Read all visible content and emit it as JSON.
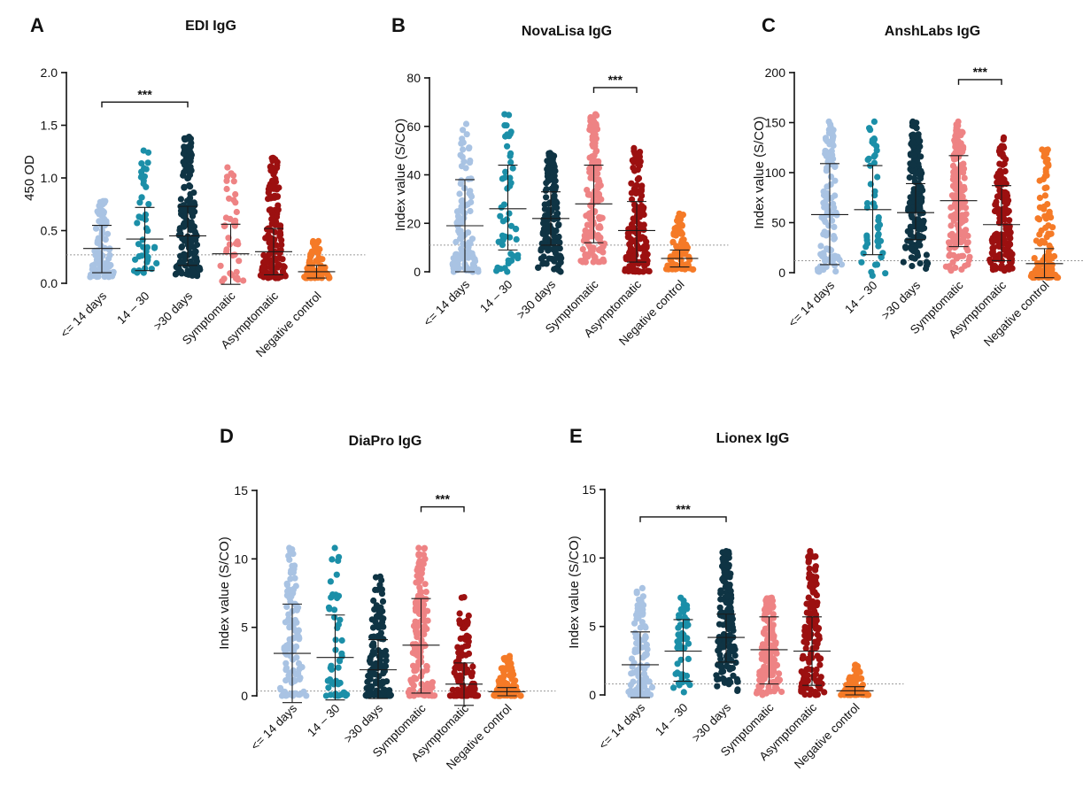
{
  "chart_data": [
    {
      "type": "scatter",
      "letter": "A",
      "title": "EDI IgG",
      "ylabel": "450 OD",
      "ylim": [
        0,
        2.0
      ],
      "yticks": [
        0,
        0.5,
        1.0,
        1.5,
        2.0
      ],
      "tick_labels": [
        "0.0",
        "0.5",
        "1.0",
        "1.5",
        "2.0"
      ],
      "cutoff": 0.27,
      "categories": [
        "<= 14 days",
        "14 – 30",
        ">30 days",
        "Symptomatic",
        "Asymptomatic",
        "Negative control"
      ],
      "series": [
        {
          "name": "<= 14 days",
          "color": "#a9c3e3",
          "n": 90,
          "min": 0.06,
          "max": 0.78,
          "mean": 0.33,
          "sd_low": 0.1,
          "sd_high": 0.55,
          "skew": 1.6
        },
        {
          "name": "14 – 30",
          "color": "#1b8fa8",
          "n": 45,
          "min": 0.1,
          "max": 1.26,
          "mean": 0.42,
          "sd_low": 0.12,
          "sd_high": 0.72,
          "skew": 1.3
        },
        {
          "name": ">30 days",
          "color": "#0f3444",
          "n": 160,
          "min": 0.07,
          "max": 1.39,
          "mean": 0.45,
          "sd_low": 0.17,
          "sd_high": 0.73,
          "skew": 1.5
        },
        {
          "name": "Symptomatic",
          "color": "#ee8384",
          "n": 40,
          "min": 0.02,
          "max": 1.1,
          "mean": 0.28,
          "sd_low": -0.01,
          "sd_high": 0.56,
          "skew": 1.6
        },
        {
          "name": "Asymptomatic",
          "color": "#9c1010",
          "n": 140,
          "min": 0.05,
          "max": 1.19,
          "mean": 0.3,
          "sd_low": 0.08,
          "sd_high": 0.52,
          "skew": 1.5
        },
        {
          "name": "Negative control",
          "color": "#f57a27",
          "n": 80,
          "min": 0.05,
          "max": 0.4,
          "mean": 0.11,
          "sd_low": 0.05,
          "sd_high": 0.17,
          "skew": 2.2
        }
      ],
      "significance": {
        "from": 0,
        "to": 2,
        "y": 1.72,
        "label": "***"
      }
    },
    {
      "type": "scatter",
      "letter": "B",
      "title": "NovaLisa IgG",
      "ylabel": "Index value (S/CO)",
      "ylim": [
        0,
        80
      ],
      "yticks": [
        0,
        20,
        40,
        60,
        80
      ],
      "tick_labels": [
        "0",
        "20",
        "40",
        "60",
        "80"
      ],
      "cutoff": 11,
      "categories": [
        "<= 14 days",
        "14 – 30",
        ">30 days",
        "Symptomatic",
        "Asymptomatic",
        "Negative control"
      ],
      "series": [
        {
          "name": "<= 14 days",
          "color": "#a9c3e3",
          "n": 110,
          "min": 0,
          "max": 61,
          "mean": 19,
          "sd_low": 0,
          "sd_high": 38,
          "skew": 1.7
        },
        {
          "name": "14 – 30",
          "color": "#1b8fa8",
          "n": 50,
          "min": 0,
          "max": 65,
          "mean": 26,
          "sd_low": 9,
          "sd_high": 44,
          "skew": 1.1
        },
        {
          "name": ">30 days",
          "color": "#0f3444",
          "n": 160,
          "min": 0,
          "max": 49,
          "mean": 22,
          "sd_low": 11,
          "sd_high": 33,
          "skew": 1.0
        },
        {
          "name": "Symptomatic",
          "color": "#ee8384",
          "n": 160,
          "min": 4,
          "max": 65,
          "mean": 28,
          "sd_low": 12,
          "sd_high": 44,
          "skew": 1.2
        },
        {
          "name": "Asymptomatic",
          "color": "#9c1010",
          "n": 150,
          "min": 0,
          "max": 51,
          "mean": 17,
          "sd_low": 4,
          "sd_high": 29,
          "skew": 1.5
        },
        {
          "name": "Negative control",
          "color": "#f57a27",
          "n": 90,
          "min": 1,
          "max": 24,
          "mean": 5.5,
          "sd_low": 2,
          "sd_high": 9,
          "skew": 2.0
        }
      ],
      "significance": {
        "from": 3,
        "to": 4,
        "y": 76,
        "label": "***"
      }
    },
    {
      "type": "scatter",
      "letter": "C",
      "title": "AnshLabs IgG",
      "ylabel": "Index value (S/CO)",
      "ylim": [
        0,
        200
      ],
      "yticks": [
        0,
        50,
        100,
        150,
        200
      ],
      "tick_labels": [
        "0",
        "50",
        "100",
        "150",
        "200"
      ],
      "cutoff": 12,
      "categories": [
        "<= 14 days",
        "14 – 30",
        ">30 days",
        "Symptomatic",
        "Asymptomatic",
        "Negative control"
      ],
      "series": [
        {
          "name": "<= 14 days",
          "color": "#a9c3e3",
          "n": 110,
          "min": 1,
          "max": 151,
          "mean": 58,
          "sd_low": 8,
          "sd_high": 109,
          "skew": 1.4
        },
        {
          "name": "14 – 30",
          "color": "#1b8fa8",
          "n": 50,
          "min": -3,
          "max": 151,
          "mean": 63,
          "sd_low": 18,
          "sd_high": 107,
          "skew": 1.0
        },
        {
          "name": ">30 days",
          "color": "#0f3444",
          "n": 160,
          "min": 4,
          "max": 151,
          "mean": 60,
          "sd_low": 33,
          "sd_high": 89,
          "skew": 1.0
        },
        {
          "name": "Symptomatic",
          "color": "#ee8384",
          "n": 170,
          "min": 2,
          "max": 151,
          "mean": 72,
          "sd_low": 26,
          "sd_high": 117,
          "skew": 1.0
        },
        {
          "name": "Asymptomatic",
          "color": "#9c1010",
          "n": 150,
          "min": 2,
          "max": 135,
          "mean": 48,
          "sd_low": 12,
          "sd_high": 87,
          "skew": 1.3
        },
        {
          "name": "Negative control",
          "color": "#f57a27",
          "n": 110,
          "min": -5,
          "max": 123,
          "mean": 9,
          "sd_low": -5,
          "sd_high": 24,
          "skew": 2.6
        }
      ],
      "significance": {
        "from": 3,
        "to": 4,
        "y": 193,
        "label": "***"
      }
    },
    {
      "type": "scatter",
      "letter": "D",
      "title": "DiaPro IgG",
      "ylabel": "Index value (S/CO)",
      "ylim": [
        0,
        15
      ],
      "yticks": [
        0,
        5,
        10,
        15
      ],
      "tick_labels": [
        "0",
        "5",
        "10",
        "15"
      ],
      "cutoff": 0.35,
      "categories": [
        "<= 14 days",
        "14 – 30",
        ">30 days",
        "Symptomatic",
        "Asymptomatic",
        "Negative control"
      ],
      "series": [
        {
          "name": "<= 14 days",
          "color": "#a9c3e3",
          "n": 110,
          "min": 0,
          "max": 10.8,
          "mean": 3.1,
          "sd_low": -0.5,
          "sd_high": 6.7,
          "skew": 1.5
        },
        {
          "name": "14 – 30",
          "color": "#1b8fa8",
          "n": 50,
          "min": 0,
          "max": 10.8,
          "mean": 2.8,
          "sd_low": -0.3,
          "sd_high": 5.9,
          "skew": 1.7
        },
        {
          "name": ">30 days",
          "color": "#0f3444",
          "n": 140,
          "min": 0,
          "max": 8.7,
          "mean": 1.9,
          "sd_low": -0.2,
          "sd_high": 4.1,
          "skew": 2.1
        },
        {
          "name": "Symptomatic",
          "color": "#ee8384",
          "n": 150,
          "min": 0,
          "max": 10.8,
          "mean": 3.7,
          "sd_low": 0.2,
          "sd_high": 7.1,
          "skew": 1.5
        },
        {
          "name": "Asymptomatic",
          "color": "#9c1010",
          "n": 110,
          "min": 0,
          "max": 7.2,
          "mean": 0.85,
          "sd_low": -0.7,
          "sd_high": 2.4,
          "skew": 3.0
        },
        {
          "name": "Negative control",
          "color": "#f57a27",
          "n": 90,
          "min": 0,
          "max": 2.9,
          "mean": 0.3,
          "sd_low": 0,
          "sd_high": 0.6,
          "skew": 2.8
        }
      ],
      "significance": {
        "from": 3,
        "to": 4,
        "y": 13.8,
        "label": "***"
      }
    },
    {
      "type": "scatter",
      "letter": "E",
      "title": "Lionex IgG",
      "ylabel": "Index value (S/CO)",
      "ylim": [
        0,
        15
      ],
      "yticks": [
        0,
        5,
        10,
        15
      ],
      "tick_labels": [
        "0",
        "5",
        "10",
        "15"
      ],
      "cutoff": 0.8,
      "categories": [
        "<= 14 days",
        "14 – 30",
        ">30 days",
        "Symptomatic",
        "Asymptomatic",
        "Negative control"
      ],
      "series": [
        {
          "name": "<= 14 days",
          "color": "#a9c3e3",
          "n": 100,
          "min": 0,
          "max": 7.8,
          "mean": 2.2,
          "sd_low": -0.2,
          "sd_high": 4.6,
          "skew": 1.7
        },
        {
          "name": "14 – 30",
          "color": "#1b8fa8",
          "n": 55,
          "min": 0.2,
          "max": 7.1,
          "mean": 3.2,
          "sd_low": 1.0,
          "sd_high": 5.5,
          "skew": 1.1
        },
        {
          "name": ">30 days",
          "color": "#0f3444",
          "n": 170,
          "min": 0.3,
          "max": 10.5,
          "mean": 4.2,
          "sd_low": 2.4,
          "sd_high": 5.9,
          "skew": 1.0
        },
        {
          "name": "Symptomatic",
          "color": "#ee8384",
          "n": 150,
          "min": 0,
          "max": 7.1,
          "mean": 3.3,
          "sd_low": 0.8,
          "sd_high": 5.7,
          "skew": 1.1
        },
        {
          "name": "Asymptomatic",
          "color": "#9c1010",
          "n": 140,
          "min": 0,
          "max": 10.5,
          "mean": 3.2,
          "sd_low": 0.7,
          "sd_high": 5.7,
          "skew": 1.2
        },
        {
          "name": "Negative control",
          "color": "#f57a27",
          "n": 80,
          "min": 0,
          "max": 2.2,
          "mean": 0.3,
          "sd_low": 0,
          "sd_high": 0.6,
          "skew": 2.8
        }
      ],
      "significance": {
        "from": 0,
        "to": 2,
        "y": 13.0,
        "label": "***"
      }
    }
  ]
}
